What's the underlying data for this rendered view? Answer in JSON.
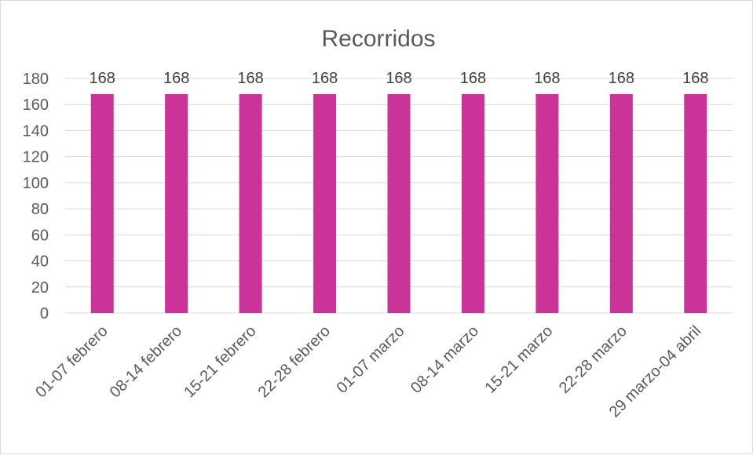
{
  "chart_data": {
    "type": "bar",
    "title": "Recorridos",
    "xlabel": "",
    "ylabel": "",
    "categories": [
      "01-07 febrero",
      "08-14 febrero",
      "15-21 febrero",
      "22-28 febrero",
      "01-07 marzo",
      "08-14 marzo",
      "15-21 marzo",
      "22-28 marzo",
      "29 marzo-04 abril"
    ],
    "values": [
      168,
      168,
      168,
      168,
      168,
      168,
      168,
      168,
      168
    ],
    "data_labels": [
      "168",
      "168",
      "168",
      "168",
      "168",
      "168",
      "168",
      "168",
      "168"
    ],
    "y_ticks": [
      "0",
      "20",
      "40",
      "60",
      "80",
      "100",
      "120",
      "140",
      "160",
      "180"
    ],
    "ylim": [
      0,
      180
    ],
    "grid": true,
    "legend": "none",
    "colors": {
      "bar": "#cc3399",
      "grid": "#d9d9d9",
      "axis": "#d9d9d9",
      "text": "#595959"
    }
  }
}
